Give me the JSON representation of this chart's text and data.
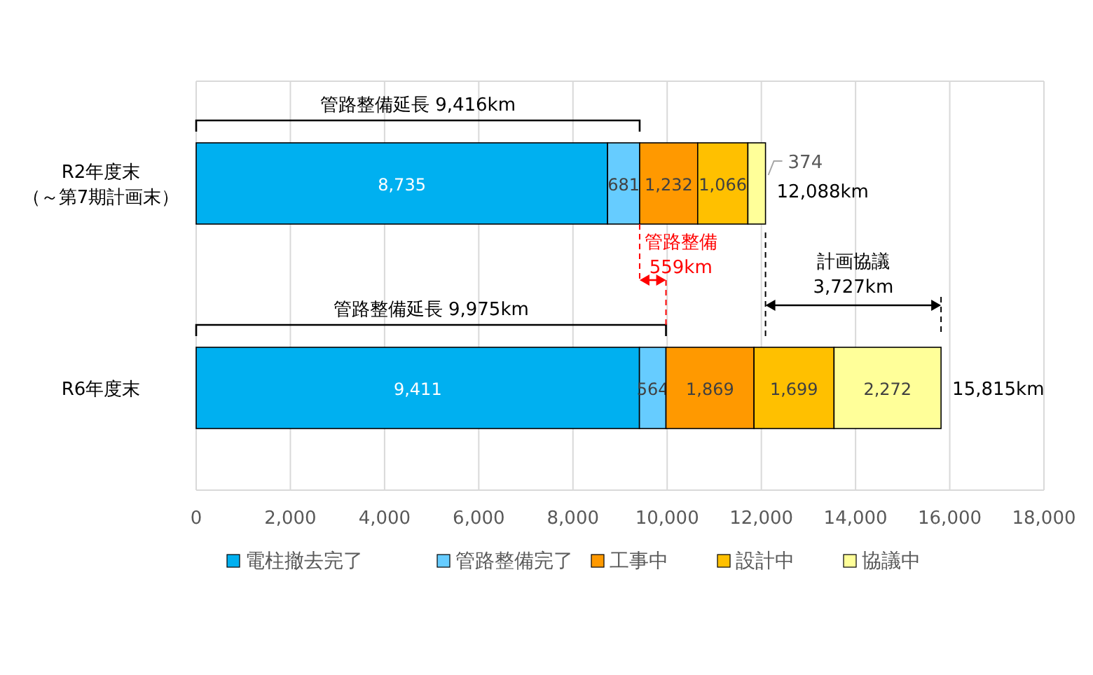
{
  "chart_data": {
    "type": "bar",
    "orientation": "horizontal",
    "stacked": true,
    "categories": [
      "R2年度末（～第7期計画末）",
      "R6年度末"
    ],
    "series": [
      {
        "name": "電柱撤去完了",
        "color": "#00b0f0",
        "values": [
          8735,
          9411
        ],
        "value_labels": [
          "8,735",
          "9,411"
        ]
      },
      {
        "name": "管路整備完了",
        "color": "#66ccff",
        "values": [
          681,
          564
        ],
        "value_labels": [
          "681",
          "564"
        ]
      },
      {
        "name": "工事中",
        "color": "#ff9900",
        "values": [
          1232,
          1869
        ],
        "value_labels": [
          "1,232",
          "1,869"
        ]
      },
      {
        "name": "設計中",
        "color": "#ffc000",
        "values": [
          1066,
          1699
        ],
        "value_labels": [
          "1,066",
          "1,699"
        ]
      },
      {
        "name": "協議中",
        "color": "#ffff99",
        "values": [
          374,
          2272
        ],
        "value_labels": [
          "374",
          "2,272"
        ]
      }
    ],
    "totals": [
      "12,088km",
      "15,815km"
    ],
    "xlim": [
      0,
      18000
    ],
    "xticks": [
      {
        "value": 0,
        "label": "0"
      },
      {
        "value": 2000,
        "label": "2,000"
      },
      {
        "value": 4000,
        "label": "4,000"
      },
      {
        "value": 6000,
        "label": "6,000"
      },
      {
        "value": 8000,
        "label": "8,000"
      },
      {
        "value": 10000,
        "label": "10,000"
      },
      {
        "value": 12000,
        "label": "12,000"
      },
      {
        "value": 14000,
        "label": "14,000"
      },
      {
        "value": 16000,
        "label": "16,000"
      },
      {
        "value": 18000,
        "label": "18,000"
      }
    ],
    "grid": "x",
    "legend": "bottom",
    "annotations": [
      "管路整備延長  9,416km",
      "管路整備延長  9,975km",
      {
        "text": "管路整備\n559km",
        "x": 9416,
        "y": "R2年度末（～第7期計画末）"
      },
      "計画協議\n3,727km"
    ]
  }
}
